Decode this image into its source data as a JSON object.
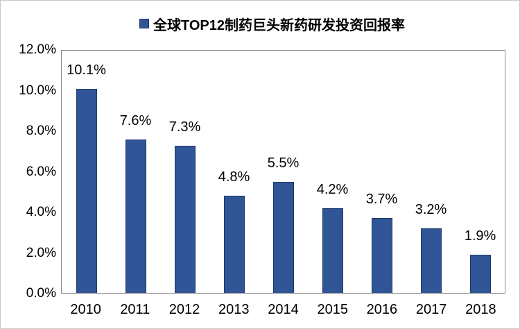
{
  "chart_data": {
    "type": "bar",
    "title": "全球TOP12制药巨头新药研发投资回报率",
    "legend": [
      "全球TOP12制药巨头新药研发投资回报率"
    ],
    "legend_position": "top-center",
    "categories": [
      "2010",
      "2011",
      "2012",
      "2013",
      "2014",
      "2015",
      "2016",
      "2017",
      "2018"
    ],
    "values": [
      10.1,
      7.6,
      7.3,
      4.8,
      5.5,
      4.2,
      3.7,
      3.2,
      1.9
    ],
    "value_labels": [
      "10.1%",
      "7.6%",
      "7.3%",
      "4.8%",
      "5.5%",
      "4.2%",
      "3.7%",
      "3.2%",
      "1.9%"
    ],
    "xlabel": "",
    "ylabel": "",
    "ylim": [
      0,
      12
    ],
    "ytick_step": 2,
    "yticks_bottom_up": [
      "0.0%",
      "2.0%",
      "4.0%",
      "6.0%",
      "8.0%",
      "10.0%",
      "12.0%"
    ],
    "grid": false,
    "plot_background": "#ffffff",
    "plot_border_color": "#8a8a8a",
    "bar_fill_color": "#2f5597",
    "bar_border_color": "#1f3864",
    "text_color": "#000000"
  }
}
